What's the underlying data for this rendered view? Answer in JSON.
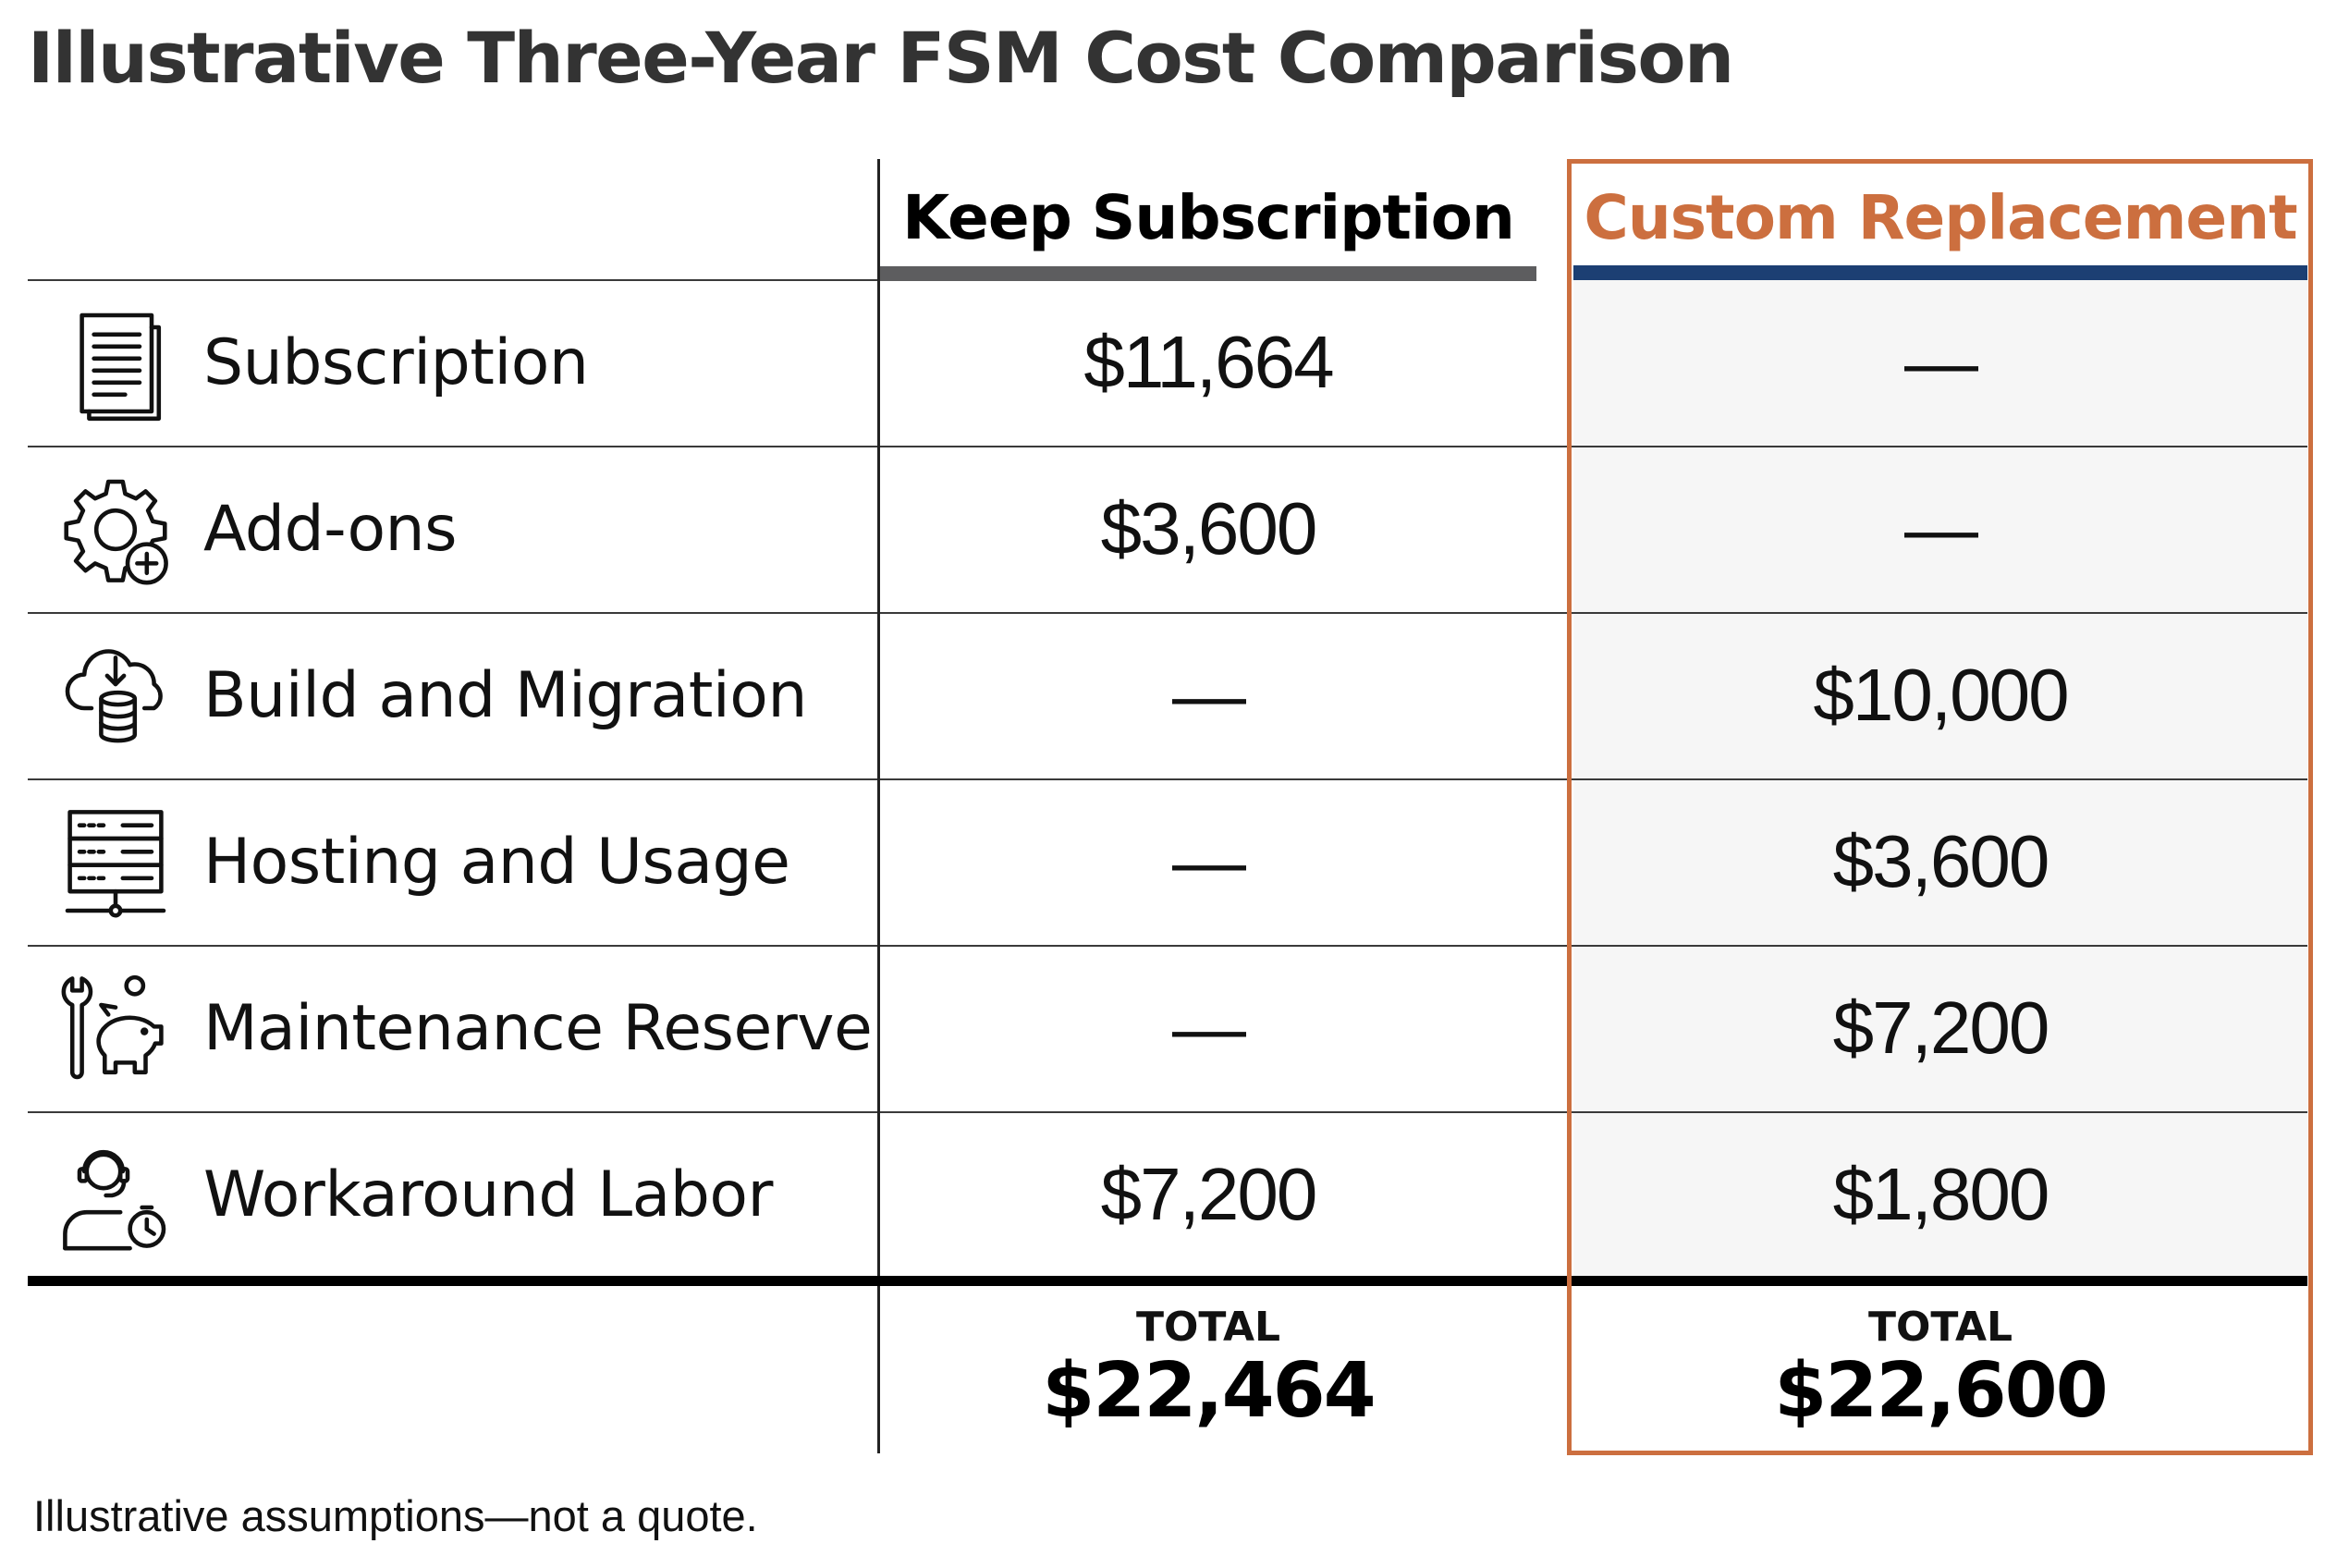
{
  "title": "Illustrative Three-Year FSM Cost Comparison",
  "footnote": "Illustrative assumptions—not a quote.",
  "colors": {
    "accent": "#cc6f3f",
    "navy": "#1c3f73",
    "keep_bar": "#5d5d5f"
  },
  "chart_data": {
    "type": "table",
    "title": "Illustrative Three-Year FSM Cost Comparison",
    "columns": [
      "Keep Subscription",
      "Custom Replacement"
    ],
    "rows": [
      {
        "label": "Subscription",
        "icon": "document-icon",
        "keep": "$11,664",
        "custom": "—"
      },
      {
        "label": "Add-ons",
        "icon": "gear-plus-icon",
        "keep": "$3,600",
        "custom": "—"
      },
      {
        "label": "Build and Migration",
        "icon": "cloud-database-icon",
        "keep": "—",
        "custom": "$10,000"
      },
      {
        "label": "Hosting and Usage",
        "icon": "server-icon",
        "keep": "—",
        "custom": "$3,600"
      },
      {
        "label": "Maintenance Reserve",
        "icon": "wrench-piggy-bank-icon",
        "keep": "—",
        "custom": "$7,200"
      },
      {
        "label": "Workaround Labor",
        "icon": "support-agent-clock-icon",
        "keep": "$7,200",
        "custom": "$1,800"
      }
    ],
    "totals": {
      "keep": {
        "label": "TOTAL",
        "value": "$22,464"
      },
      "custom": {
        "label": "TOTAL",
        "value": "$22,600"
      }
    },
    "highlighted_column": "Custom Replacement"
  }
}
